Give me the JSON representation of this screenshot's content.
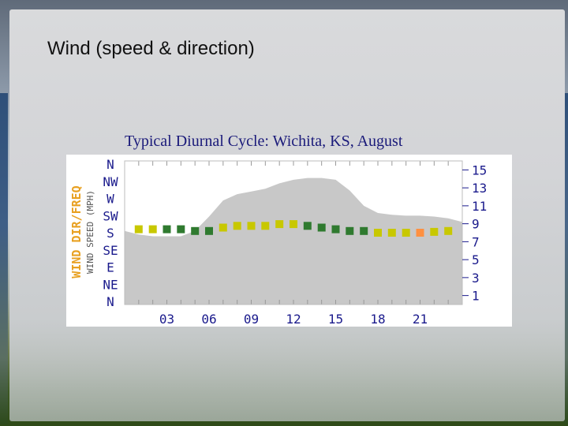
{
  "slide": {
    "title": "Wind (speed & direction)"
  },
  "chart_data": {
    "type": "area",
    "title": "Typical Diurnal Cycle:  Wichita, KS, August",
    "left_axis_title_primary": "WIND DIR/FREQ",
    "left_axis_title_secondary": "WIND SPEED (MPH)",
    "direction_ticks": [
      "N",
      "NW",
      "W",
      "SW",
      "S",
      "SE",
      "E",
      "NE",
      "N"
    ],
    "speed_ticks": [
      15,
      13,
      11,
      9,
      7,
      5,
      3,
      1
    ],
    "x_ticks": [
      "03",
      "06",
      "09",
      "12",
      "15",
      "18",
      "21"
    ],
    "xlim": [
      0,
      24
    ],
    "speed_ylim": [
      0,
      16
    ],
    "speed_series": {
      "x": [
        0,
        1,
        2,
        3,
        4,
        5,
        6,
        7,
        8,
        9,
        10,
        11,
        12,
        13,
        14,
        15,
        16,
        17,
        18,
        19,
        20,
        21,
        22,
        23,
        24
      ],
      "values": [
        8.2,
        7.8,
        7.6,
        7.6,
        7.6,
        8.2,
        9.8,
        11.6,
        12.3,
        12.6,
        12.9,
        13.5,
        13.9,
        14.1,
        14.1,
        13.9,
        12.7,
        11.0,
        10.2,
        10.0,
        9.9,
        9.9,
        9.8,
        9.6,
        9.2
      ]
    },
    "direction_series": {
      "hours": [
        1,
        2,
        3,
        4,
        5,
        6,
        7,
        8,
        9,
        10,
        11,
        12,
        13,
        14,
        15,
        16,
        17,
        18,
        19,
        20,
        21,
        22,
        23
      ],
      "direction_index": [
        3.8,
        3.8,
        3.8,
        3.8,
        3.9,
        3.9,
        3.7,
        3.6,
        3.6,
        3.6,
        3.5,
        3.5,
        3.6,
        3.7,
        3.8,
        3.9,
        3.9,
        4.0,
        4.0,
        4.0,
        4.0,
        3.95,
        3.9
      ],
      "colors": [
        "#c8c800",
        "#c8c800",
        "#2f7a2f",
        "#2f7a2f",
        "#2f7a2f",
        "#2f7a2f",
        "#c8c800",
        "#c8c800",
        "#c8c800",
        "#c8c800",
        "#c8c800",
        "#c8c800",
        "#2f7a2f",
        "#2f7a2f",
        "#2f7a2f",
        "#2f7a2f",
        "#2f7a2f",
        "#c8c800",
        "#c8c800",
        "#c8c800",
        "#ff9040",
        "#c8c800",
        "#c8c800"
      ]
    },
    "colors": {
      "speed_fill": "#c8c8c8",
      "plot_background": "#ffffff",
      "gridline": "#ffffff",
      "tick": "#999999",
      "left_title_color": "#e8a020",
      "axis_label_color": "#1a1a8c"
    },
    "grid": false
  }
}
